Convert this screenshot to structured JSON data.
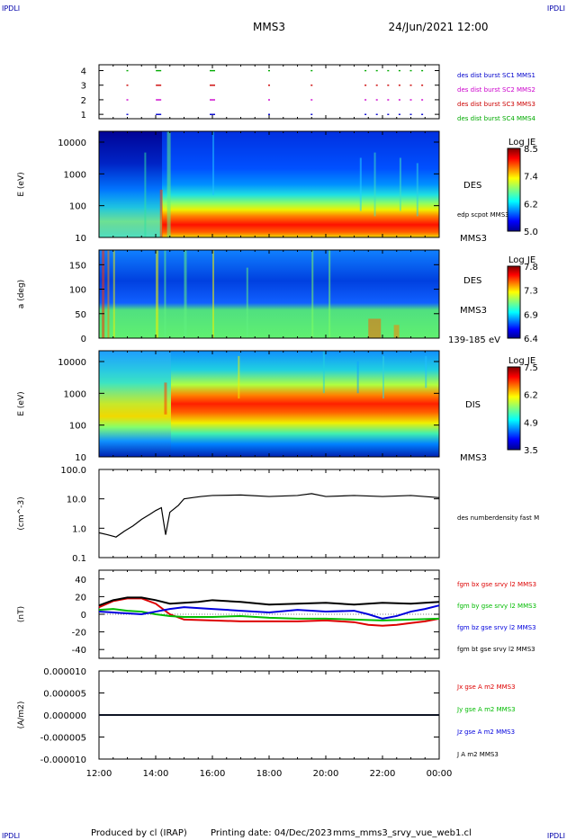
{
  "header": {
    "corner_tl": "IPDLI",
    "corner_tr": "IPDLI",
    "corner_bl": "IPDLI",
    "corner_br": "IPDLI",
    "mission": "MMS3",
    "datetime": "24/Jun/2021 12:00"
  },
  "footer": {
    "produced_by": "Produced by cl (IRAP)",
    "printing_date": "Printing date: 04/Dec/2023",
    "filename": "mms_mms3_srvy_vue_web1.cl"
  },
  "colors": {
    "mms1": "#0000cc",
    "mms2": "#cc00cc",
    "mms3": "#cc0000",
    "mms4": "#00aa00",
    "bx": "#dd0000",
    "by": "#00bb00",
    "bz": "#0000dd",
    "bt": "#000000"
  },
  "chart_data": [
    {
      "type": "scatter",
      "panel": "burst",
      "yticks": [
        "1",
        "2",
        "3",
        "4"
      ],
      "legend": [
        {
          "label": "des dist burst SC1 MMS1",
          "color_key": "mms1"
        },
        {
          "label": "des dist burst SC2 MMS2",
          "color_key": "mms2"
        },
        {
          "label": "des dist burst SC3 MMS3",
          "color_key": "mms3"
        },
        {
          "label": "des dist burst SC4 MMS4",
          "color_key": "mms4"
        }
      ],
      "burst_times_h": [
        13.0,
        14.1,
        16.0,
        18.0,
        19.5,
        21.4,
        21.8,
        22.2,
        22.6,
        23.0,
        23.4
      ]
    },
    {
      "type": "heatmap",
      "panel": "des_energy",
      "ylabel": "E (eV)",
      "yticks": [
        "10",
        "100",
        "1000",
        "10000"
      ],
      "right_labels": [
        "DES",
        "MMS3"
      ],
      "overlay_label": "edp scpot MMS3",
      "colorbar": {
        "title": "Log JE",
        "ticks": [
          "8.5",
          "7.4",
          "6.2",
          "5.0"
        ],
        "min": 5.0,
        "max": 8.5
      }
    },
    {
      "type": "heatmap",
      "panel": "des_pitch",
      "ylabel": "a (deg)",
      "yticks": [
        "0",
        "50",
        "100",
        "150"
      ],
      "right_labels": [
        "DES",
        "MMS3",
        "139-185 eV"
      ],
      "colorbar": {
        "title": "Log JE",
        "ticks": [
          "7.8",
          "7.3",
          "6.9",
          "6.4"
        ],
        "min": 6.4,
        "max": 7.8
      }
    },
    {
      "type": "heatmap",
      "panel": "dis_energy",
      "ylabel": "E (eV)",
      "yticks": [
        "10",
        "100",
        "1000",
        "10000"
      ],
      "right_labels": [
        "DIS",
        "MMS3"
      ],
      "colorbar": {
        "title": "Log JE",
        "ticks": [
          "7.5",
          "6.2",
          "4.9",
          "3.5"
        ],
        "min": 3.5,
        "max": 7.5
      }
    },
    {
      "type": "line",
      "panel": "density",
      "ylabel": "(cm^-3)",
      "yscale": "log",
      "ylim": [
        0.1,
        100.0
      ],
      "yticks": [
        "0.1",
        "1.0",
        "10.0",
        "100.0"
      ],
      "series": [
        {
          "name": "des numberdensity fast M",
          "color_key": "bt",
          "x": [
            12.0,
            12.3,
            12.6,
            12.9,
            13.2,
            13.5,
            13.8,
            14.0,
            14.2,
            14.35,
            14.5,
            14.8,
            15.0,
            15.3,
            15.6,
            16.0,
            17.0,
            18.0,
            19.0,
            19.5,
            20.0,
            21.0,
            22.0,
            23.0,
            24.0
          ],
          "y": [
            0.7,
            0.6,
            0.5,
            0.8,
            1.2,
            2.0,
            3.0,
            4.0,
            5.0,
            0.6,
            3.5,
            6.0,
            10.0,
            11.0,
            12.0,
            13.0,
            13.5,
            12.0,
            13.0,
            15.0,
            12.0,
            13.0,
            12.0,
            13.0,
            11.0
          ]
        }
      ]
    },
    {
      "type": "line",
      "panel": "magnetic_field",
      "ylabel": "(nT)",
      "ylim": [
        -50,
        50
      ],
      "yticks": [
        "-40",
        "-20",
        "0",
        "20",
        "40"
      ],
      "series": [
        {
          "name": "fgm bx gse srvy l2 MMS3",
          "color_key": "bx",
          "x": [
            12.0,
            12.5,
            13.0,
            13.5,
            14.0,
            14.5,
            15.0,
            16.0,
            17.0,
            18.0,
            19.0,
            20.0,
            21.0,
            21.5,
            22.0,
            22.5,
            23.0,
            23.5,
            24.0
          ],
          "y": [
            8,
            15,
            18,
            18,
            12,
            0,
            -6,
            -7,
            -8,
            -8,
            -8,
            -7,
            -9,
            -12,
            -13,
            -12,
            -10,
            -8,
            -5
          ]
        },
        {
          "name": "fgm by gse srvy l2 MMS3",
          "color_key": "by",
          "x": [
            12.0,
            12.5,
            13.0,
            13.5,
            14.0,
            14.5,
            15.0,
            16.0,
            17.0,
            18.0,
            19.0,
            20.0,
            21.0,
            22.0,
            23.0,
            24.0
          ],
          "y": [
            5,
            6,
            4,
            3,
            0,
            -2,
            -3,
            -3,
            -2,
            -4,
            -5,
            -5,
            -6,
            -7,
            -6,
            -5
          ]
        },
        {
          "name": "fgm bz gse srvy l2 MMS3",
          "color_key": "bz",
          "x": [
            12.0,
            12.5,
            13.0,
            13.5,
            14.0,
            14.5,
            15.0,
            16.0,
            17.0,
            18.0,
            19.0,
            20.0,
            21.0,
            21.5,
            22.0,
            22.5,
            23.0,
            23.5,
            24.0
          ],
          "y": [
            3,
            2,
            1,
            0,
            3,
            6,
            8,
            6,
            4,
            2,
            5,
            3,
            4,
            0,
            -5,
            -2,
            3,
            6,
            10
          ]
        },
        {
          "name": "fgm bt gse srvy l2 MMS3",
          "color_key": "bt",
          "x": [
            12.0,
            12.5,
            13.0,
            13.5,
            14.0,
            14.5,
            15.0,
            15.5,
            16.0,
            17.0,
            18.0,
            19.0,
            20.0,
            21.0,
            22.0,
            23.0,
            24.0
          ],
          "y": [
            10,
            16,
            19,
            19,
            16,
            12,
            13,
            14,
            16,
            14,
            11,
            12,
            13,
            11,
            13,
            12,
            14
          ]
        }
      ]
    },
    {
      "type": "line",
      "panel": "current",
      "ylabel": "(A/m2)",
      "ylim": [
        -1e-05,
        1e-05
      ],
      "yticks": [
        "-0.000010",
        "-0.000005",
        "0.000000",
        "0.000005",
        "0.000010"
      ],
      "series": [
        {
          "name": "Jx gse A m2 MMS3",
          "color_key": "bx",
          "x": [
            12.0,
            24.0
          ],
          "y": [
            0.0,
            0.0
          ]
        },
        {
          "name": "Jy gse A m2 MMS3",
          "color_key": "by",
          "x": [
            12.0,
            24.0
          ],
          "y": [
            0.0,
            0.0
          ]
        },
        {
          "name": "Jz gse A m2 MMS3",
          "color_key": "bz",
          "x": [
            12.0,
            24.0
          ],
          "y": [
            0.0,
            0.0
          ]
        },
        {
          "name": "J A m2 MMS3",
          "color_key": "bt",
          "x": [
            12.0,
            24.0
          ],
          "y": [
            0.0,
            0.0
          ]
        }
      ]
    }
  ],
  "time_axis": {
    "xlim": [
      12.0,
      24.0
    ],
    "tick_hours": [
      12,
      14,
      16,
      18,
      20,
      22,
      24
    ],
    "tick_labels": [
      "12:00",
      "14:00",
      "16:00",
      "18:00",
      "20:00",
      "22:00",
      "00:00"
    ]
  }
}
